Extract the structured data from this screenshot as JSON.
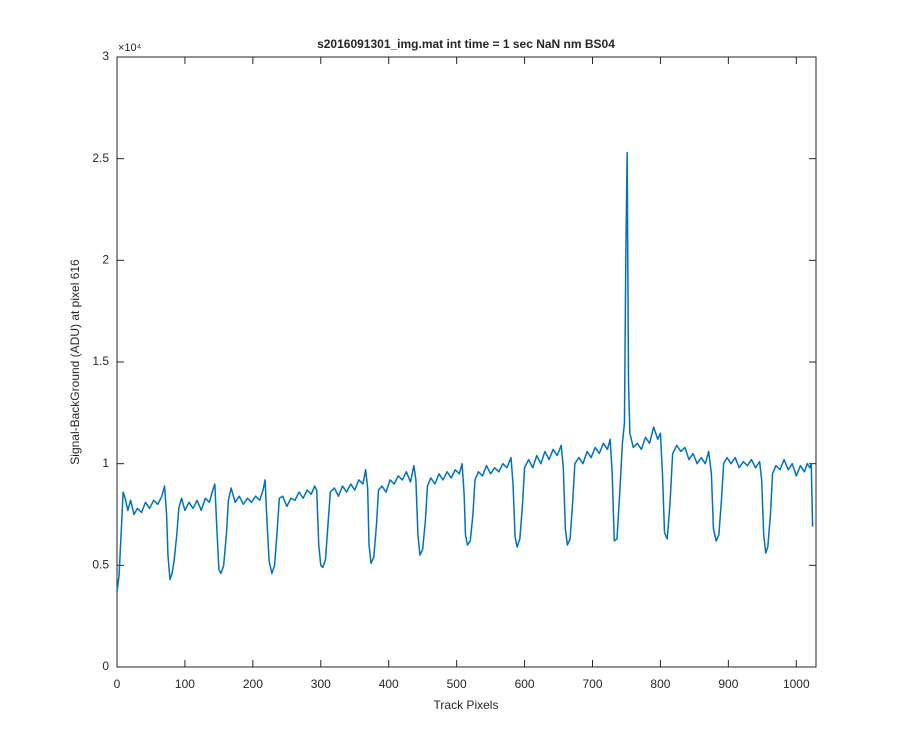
{
  "chart_data": {
    "type": "line",
    "title": "s2016091301_img.mat int time = 1 sec  NaN nm BS04",
    "x_label": "Track Pixels",
    "y_label": "Signal-BackGround (ADU) at pixel 616",
    "y_multiplier": "×10⁴",
    "xlim": [
      0,
      1029
    ],
    "ylim": [
      0,
      30000
    ],
    "xticks": [
      0,
      100,
      200,
      300,
      400,
      500,
      600,
      700,
      800,
      900,
      1000
    ],
    "yticks": [
      0,
      {
        "value": 5000,
        "label": "0.5"
      },
      {
        "value": 10000,
        "label": "1"
      },
      {
        "value": 15000,
        "label": "1.5"
      },
      {
        "value": 20000,
        "label": "2"
      },
      {
        "value": 25000,
        "label": "2.5"
      },
      {
        "value": 30000,
        "label": "3"
      }
    ],
    "series": [
      {
        "color": "#0072bd",
        "x": [
          0,
          3,
          6,
          9,
          12,
          16,
          20,
          25,
          30,
          36,
          42,
          48,
          54,
          60,
          66,
          70,
          73,
          75,
          78,
          81,
          84,
          88,
          91,
          95,
          100,
          106,
          112,
          118,
          124,
          130,
          136,
          141,
          144,
          147,
          150,
          153,
          157,
          161,
          164,
          168,
          174,
          180,
          186,
          192,
          198,
          204,
          210,
          215,
          218,
          221,
          224,
          228,
          232,
          236,
          239,
          244,
          250,
          256,
          262,
          268,
          274,
          280,
          286,
          291,
          294,
          297,
          300,
          303,
          307,
          311,
          314,
          320,
          326,
          332,
          338,
          344,
          350,
          356,
          362,
          366,
          369,
          371,
          374,
          378,
          382,
          385,
          390,
          396,
          402,
          408,
          414,
          420,
          426,
          432,
          437,
          440,
          443,
          446,
          450,
          454,
          457,
          462,
          468,
          474,
          480,
          486,
          492,
          498,
          504,
          508,
          511,
          513,
          516,
          520,
          524,
          527,
          532,
          538,
          544,
          550,
          556,
          562,
          568,
          574,
          580,
          583,
          586,
          589,
          593,
          597,
          600,
          606,
          612,
          618,
          624,
          630,
          636,
          642,
          648,
          654,
          657,
          660,
          663,
          667,
          671,
          674,
          680,
          686,
          692,
          698,
          704,
          710,
          716,
          722,
          726,
          729,
          732,
          736,
          740,
          744,
          747,
          749,
          751,
          753,
          755,
          760,
          766,
          772,
          778,
          784,
          790,
          796,
          800,
          803,
          806,
          810,
          814,
          818,
          824,
          830,
          836,
          842,
          848,
          854,
          860,
          866,
          871,
          875,
          878,
          882,
          886,
          890,
          893,
          898,
          904,
          910,
          916,
          922,
          928,
          934,
          940,
          946,
          949,
          952,
          955,
          958,
          962,
          965,
          970,
          976,
          982,
          988,
          994,
          1000,
          1006,
          1012,
          1016,
          1020,
          1022,
          1024
        ],
        "values": [
          3700,
          4500,
          6500,
          8600,
          8300,
          7700,
          8200,
          7500,
          7800,
          7600,
          8100,
          7800,
          8200,
          8000,
          8400,
          8900,
          7500,
          5500,
          4300,
          4600,
          5200,
          6500,
          7800,
          8300,
          7700,
          8100,
          7800,
          8200,
          7700,
          8300,
          8100,
          8700,
          9000,
          6800,
          4800,
          4600,
          5000,
          6500,
          8200,
          8800,
          8100,
          8400,
          8000,
          8300,
          8100,
          8400,
          8200,
          8700,
          9200,
          7000,
          5200,
          4600,
          5000,
          6800,
          8300,
          8400,
          7900,
          8300,
          8200,
          8600,
          8300,
          8700,
          8500,
          8900,
          8700,
          6000,
          5000,
          4900,
          5300,
          7200,
          8600,
          8800,
          8400,
          8900,
          8600,
          9000,
          8700,
          9200,
          9000,
          9700,
          8800,
          6000,
          5100,
          5400,
          7000,
          8700,
          8900,
          8600,
          9200,
          9000,
          9400,
          9200,
          9600,
          9100,
          9900,
          9200,
          6500,
          5500,
          5800,
          7200,
          8900,
          9300,
          9000,
          9500,
          9200,
          9600,
          9300,
          9700,
          9500,
          10000,
          8500,
          6500,
          6000,
          6200,
          7500,
          9200,
          9600,
          9400,
          9900,
          9500,
          9800,
          9600,
          10000,
          9800,
          10300,
          9000,
          6400,
          5900,
          6300,
          8000,
          9800,
          10200,
          9800,
          10400,
          10000,
          10600,
          10200,
          10700,
          10400,
          10900,
          9800,
          6800,
          6000,
          6300,
          8200,
          10000,
          10300,
          10000,
          10600,
          10300,
          10800,
          10500,
          11000,
          10700,
          11200,
          9500,
          6200,
          6300,
          8500,
          11000,
          12000,
          20000,
          25300,
          14000,
          11500,
          10800,
          11000,
          10700,
          11300,
          11000,
          11800,
          11200,
          11500,
          9500,
          6600,
          6300,
          8000,
          10500,
          10900,
          10600,
          10800,
          10200,
          10500,
          10000,
          10300,
          10000,
          10600,
          9500,
          6800,
          6200,
          6500,
          8300,
          10000,
          10300,
          10000,
          10300,
          9800,
          10100,
          9900,
          10200,
          9800,
          10100,
          9200,
          6500,
          5600,
          5900,
          7500,
          9500,
          9900,
          9700,
          10200,
          9700,
          10000,
          9400,
          9900,
          9600,
          10000,
          9800,
          10000,
          6900
        ]
      }
    ]
  }
}
